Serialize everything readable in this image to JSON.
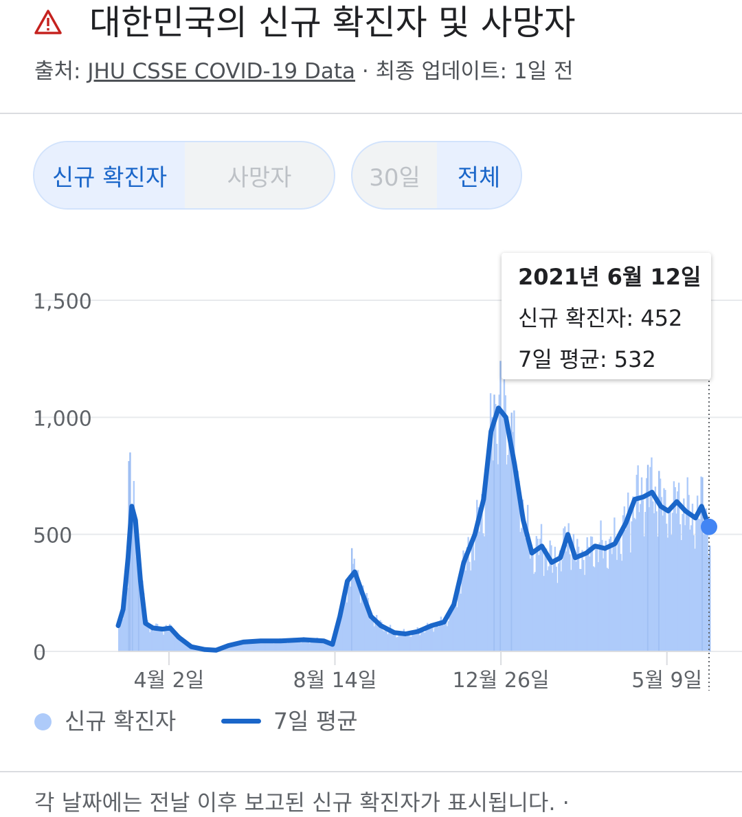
{
  "header": {
    "title": "대한민국의 신규 확진자 및 사망자",
    "source_prefix": "출처: ",
    "source_link": "JHU CSSE COVID-19 Data",
    "source_suffix": " · 최종 업데이트: 1일 전"
  },
  "toggles": {
    "metric": [
      {
        "label": "신규 확진자",
        "active": true
      },
      {
        "label": "사망자",
        "active": false
      }
    ],
    "range": [
      {
        "label": "30일",
        "active": false
      },
      {
        "label": "전체",
        "active": true
      }
    ]
  },
  "colors": {
    "bar_fill": "#aecbfa",
    "bar_spike": "#9fbff3",
    "line": "#1a66c9",
    "marker": "#4285f4",
    "grid": "#e8eaed",
    "active_text": "#1a66c9",
    "warn_icon": "#c5221f"
  },
  "tooltip": {
    "date": "2021년 6월 12일",
    "new_cases": "신규 확진자: 452",
    "avg7": "7일 평균: 532"
  },
  "legend": {
    "bars": "신규 확진자",
    "line": "7일 평균"
  },
  "footnote": "각 날짜에는 전날 이후 보고된 신규 확진자가 표시됩니다. ·",
  "chart_data": {
    "type": "bar",
    "ylim": [
      0,
      1650
    ],
    "yticks": [
      {
        "value": 0,
        "label": "0"
      },
      {
        "value": 500,
        "label": "500"
      },
      {
        "value": 1000,
        "label": "1,000"
      },
      {
        "value": 1500,
        "label": "1,500"
      }
    ],
    "xticks": [
      {
        "date": "2020-04-02",
        "label": "4월 2일"
      },
      {
        "date": "2020-08-14",
        "label": "8월 14일"
      },
      {
        "date": "2020-12-26",
        "label": "12월 26일"
      },
      {
        "date": "2021-05-09",
        "label": "5월 9일"
      }
    ],
    "date_range": [
      "2020-02-21",
      "2021-06-12"
    ],
    "series": [
      {
        "name": "7일 평균",
        "kind": "line",
        "points": [
          [
            "2020-02-21",
            110
          ],
          [
            "2020-02-25",
            180
          ],
          [
            "2020-02-29",
            400
          ],
          [
            "2020-03-03",
            620
          ],
          [
            "2020-03-06",
            560
          ],
          [
            "2020-03-10",
            300
          ],
          [
            "2020-03-14",
            120
          ],
          [
            "2020-03-20",
            100
          ],
          [
            "2020-03-28",
            95
          ],
          [
            "2020-04-03",
            100
          ],
          [
            "2020-04-10",
            60
          ],
          [
            "2020-04-20",
            20
          ],
          [
            "2020-05-01",
            8
          ],
          [
            "2020-05-10",
            5
          ],
          [
            "2020-05-20",
            25
          ],
          [
            "2020-06-01",
            40
          ],
          [
            "2020-06-15",
            45
          ],
          [
            "2020-07-01",
            45
          ],
          [
            "2020-07-20",
            50
          ],
          [
            "2020-08-05",
            45
          ],
          [
            "2020-08-12",
            30
          ],
          [
            "2020-08-18",
            150
          ],
          [
            "2020-08-24",
            300
          ],
          [
            "2020-08-30",
            340
          ],
          [
            "2020-09-05",
            250
          ],
          [
            "2020-09-12",
            150
          ],
          [
            "2020-09-20",
            110
          ],
          [
            "2020-10-01",
            80
          ],
          [
            "2020-10-10",
            75
          ],
          [
            "2020-10-20",
            85
          ],
          [
            "2020-10-31",
            110
          ],
          [
            "2020-11-10",
            125
          ],
          [
            "2020-11-18",
            200
          ],
          [
            "2020-11-26",
            380
          ],
          [
            "2020-12-05",
            500
          ],
          [
            "2020-12-12",
            650
          ],
          [
            "2020-12-18",
            940
          ],
          [
            "2020-12-24",
            1040
          ],
          [
            "2020-12-30",
            1000
          ],
          [
            "2021-01-06",
            800
          ],
          [
            "2021-01-13",
            560
          ],
          [
            "2021-01-20",
            420
          ],
          [
            "2021-01-28",
            450
          ],
          [
            "2021-02-05",
            380
          ],
          [
            "2021-02-12",
            400
          ],
          [
            "2021-02-18",
            500
          ],
          [
            "2021-02-24",
            400
          ],
          [
            "2021-03-05",
            420
          ],
          [
            "2021-03-12",
            450
          ],
          [
            "2021-03-20",
            440
          ],
          [
            "2021-03-28",
            460
          ],
          [
            "2021-04-06",
            550
          ],
          [
            "2021-04-13",
            650
          ],
          [
            "2021-04-20",
            660
          ],
          [
            "2021-04-27",
            680
          ],
          [
            "2021-05-04",
            620
          ],
          [
            "2021-05-10",
            600
          ],
          [
            "2021-05-17",
            640
          ],
          [
            "2021-05-24",
            600
          ],
          [
            "2021-06-01",
            570
          ],
          [
            "2021-06-06",
            620
          ],
          [
            "2021-06-12",
            532
          ]
        ]
      },
      {
        "name": "신규 확진자",
        "kind": "bar",
        "points": [
          [
            "2020-02-29",
            813
          ],
          [
            "2020-03-01",
            850
          ],
          [
            "2020-03-03",
            600
          ],
          [
            "2020-03-08",
            367
          ],
          [
            "2020-08-27",
            441
          ],
          [
            "2020-12-25",
            1241
          ],
          [
            "2020-12-20",
            1097
          ],
          [
            "2021-01-03",
            1020
          ],
          [
            "2021-04-23",
            797
          ],
          [
            "2021-05-02",
            771
          ],
          [
            "2021-06-06",
            744
          ],
          [
            "2021-06-12",
            452
          ]
        ]
      }
    ]
  }
}
